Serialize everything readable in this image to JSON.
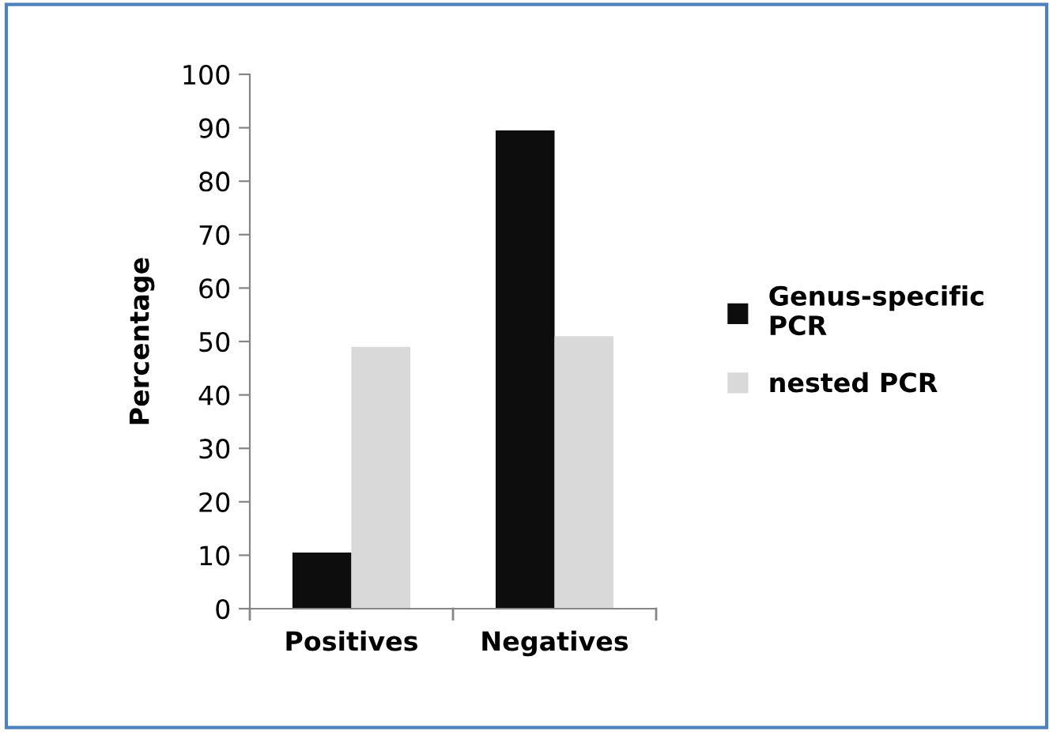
{
  "chart_data": {
    "type": "bar",
    "ylabel": "Percentage",
    "categories": [
      "Positives",
      "Negatives"
    ],
    "series": [
      {
        "name": "Genus-specific\nPCR",
        "color": "#0d0d0d",
        "values": [
          10.5,
          89.5
        ]
      },
      {
        "name": "nested PCR",
        "color": "#d9d9d9",
        "values": [
          49,
          51
        ]
      }
    ],
    "ylim": [
      0,
      100
    ],
    "yticks": [
      0,
      10,
      20,
      30,
      40,
      50,
      60,
      70,
      80,
      90,
      100
    ],
    "grid": false,
    "legend": "right"
  }
}
